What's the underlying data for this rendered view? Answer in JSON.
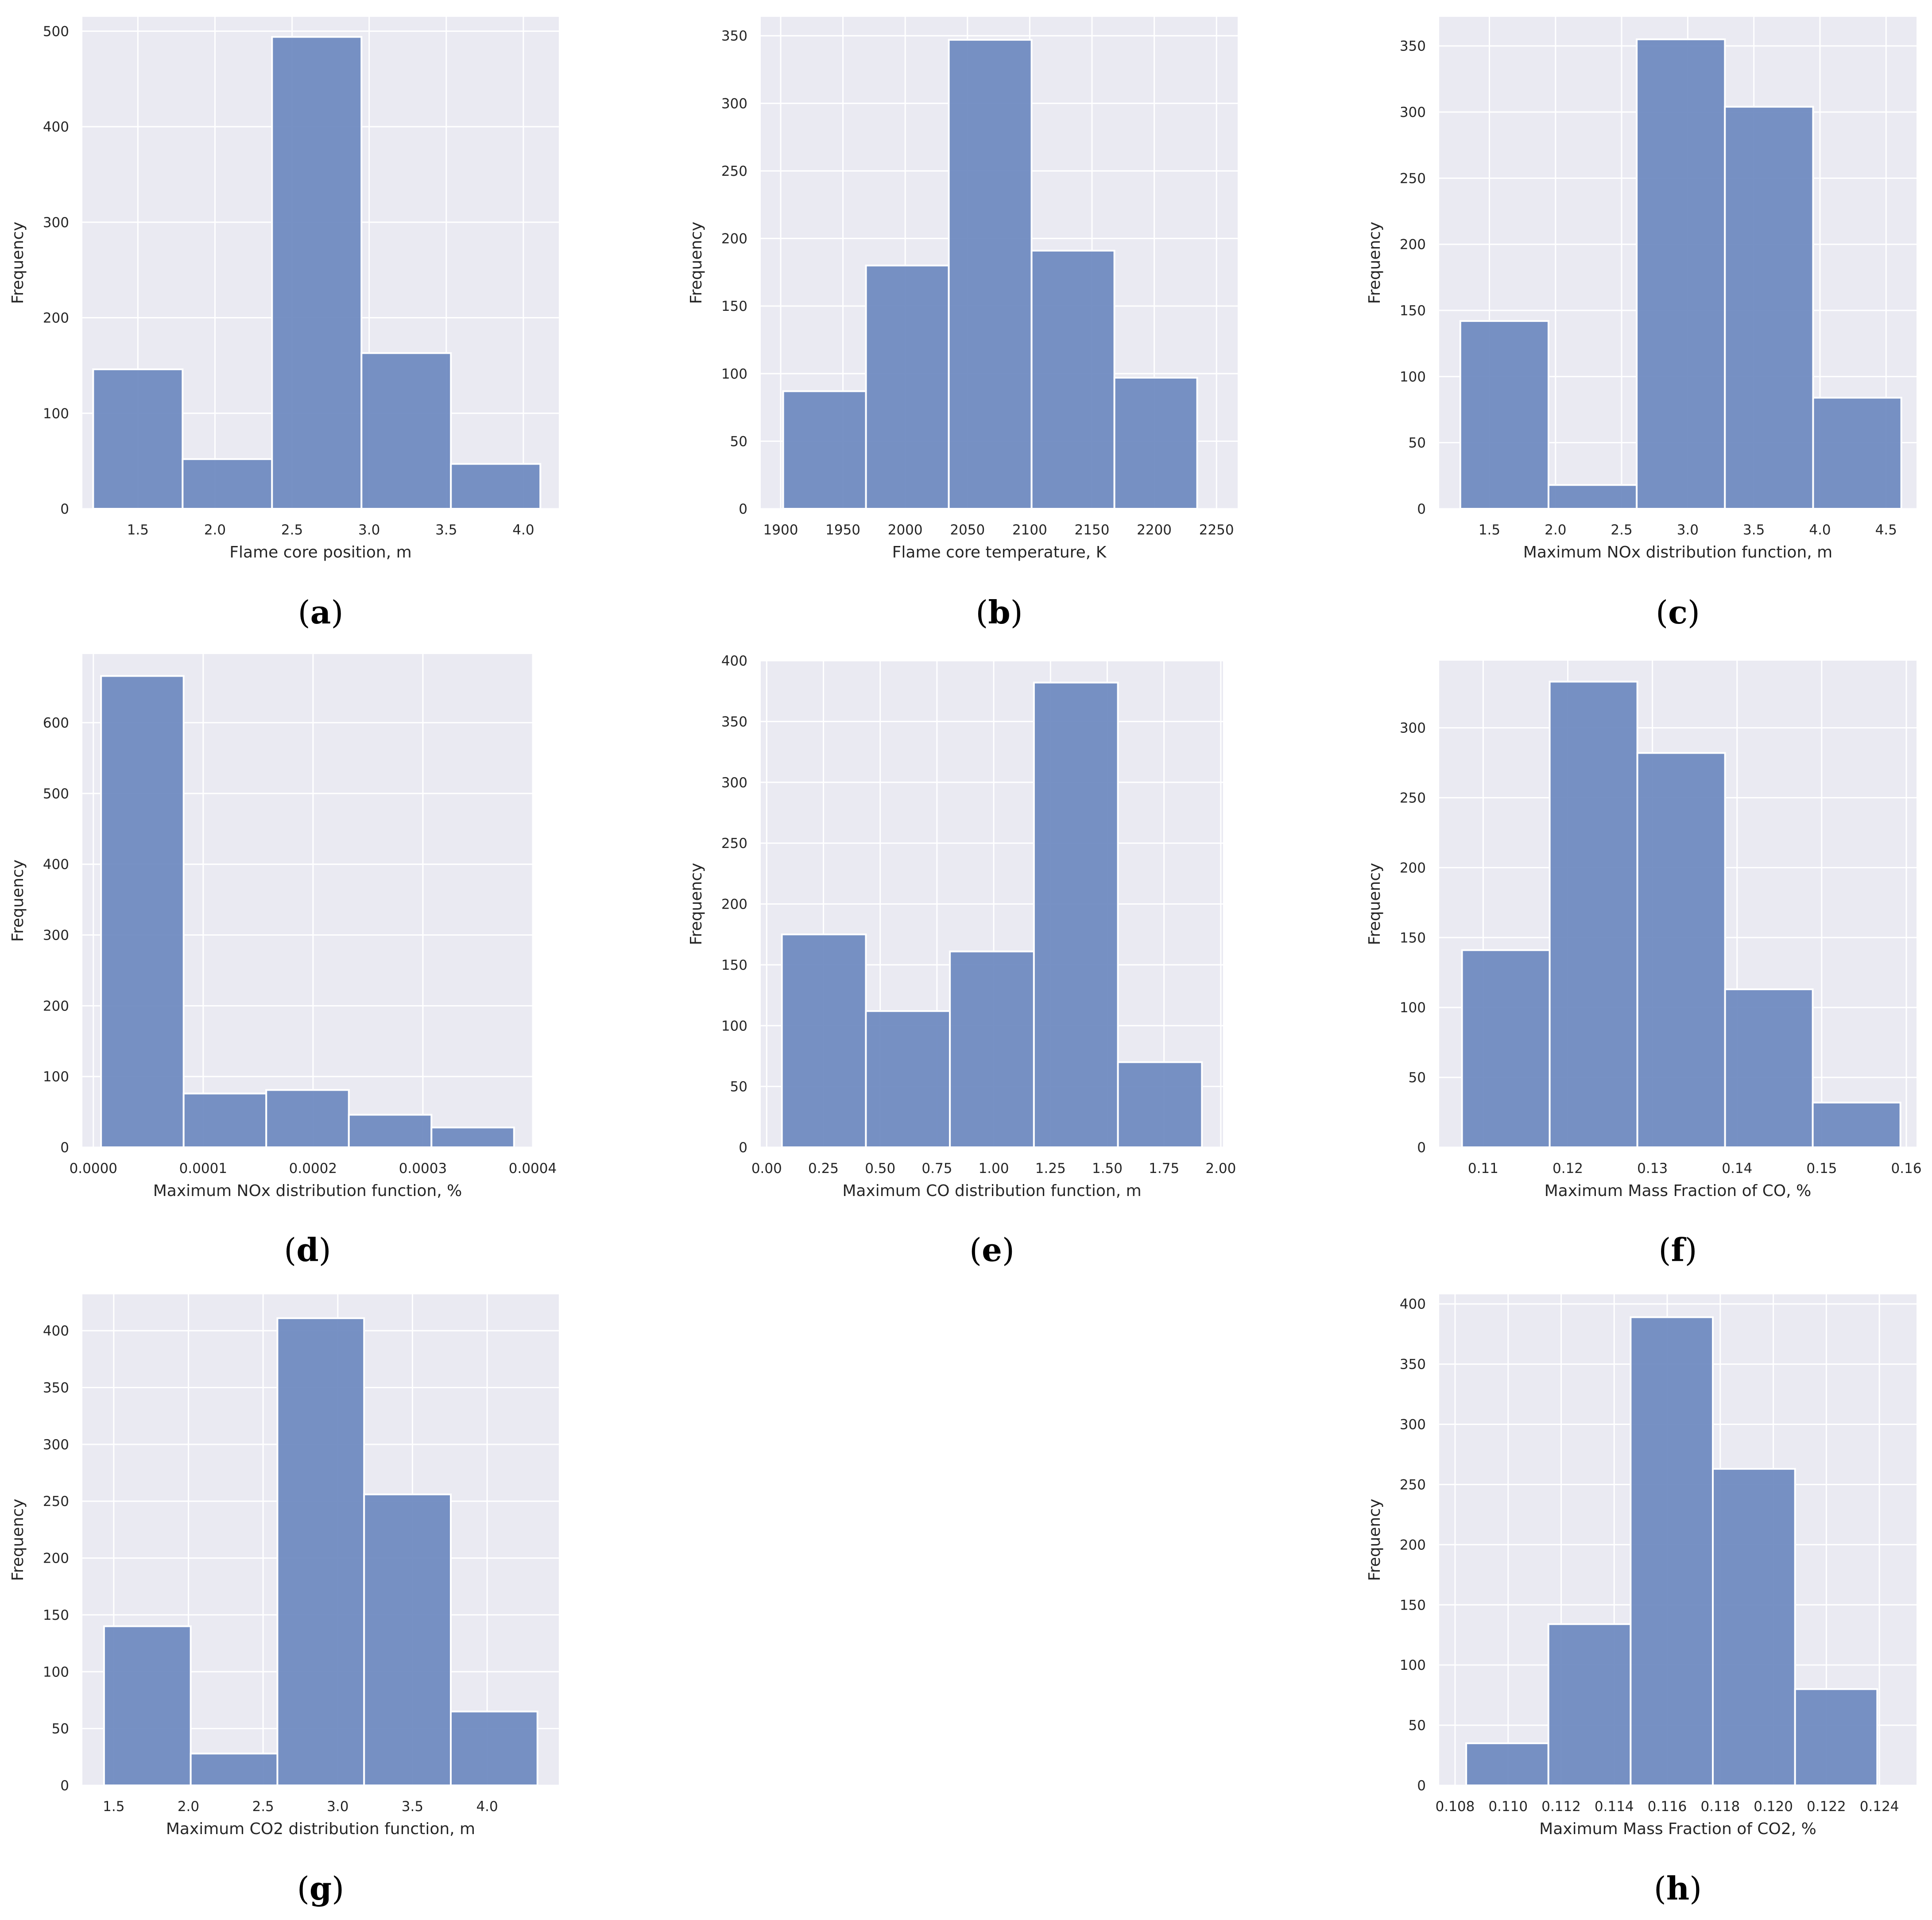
{
  "figure": {
    "background": "#ffffff",
    "plot_bg": "#eaeaf2",
    "grid_color": "#ffffff",
    "bar_color": "#6b88bf",
    "bar_edge": "#ffffff"
  },
  "chart_data": [
    {
      "id": "a",
      "type": "bar",
      "caption_letter": "a",
      "xlabel": "Flame core position, m",
      "ylabel": "Frequency",
      "xlim": [
        1.14,
        4.23
      ],
      "ylim": [
        0,
        515
      ],
      "bin_edges": [
        1.21,
        1.79,
        2.37,
        2.95,
        3.53,
        4.11
      ],
      "values": [
        146,
        52,
        494,
        163,
        47
      ],
      "xticks": [
        1.5,
        2.0,
        2.5,
        3.0,
        3.5,
        4.0
      ],
      "xtick_labels": [
        "1.5",
        "2.0",
        "2.5",
        "3.0",
        "3.5",
        "4.0"
      ],
      "yticks": [
        0,
        100,
        200,
        300,
        400,
        500
      ],
      "ytick_labels": [
        "0",
        "100",
        "200",
        "300",
        "400",
        "500"
      ]
    },
    {
      "id": "b",
      "type": "bar",
      "caption_letter": "b",
      "xlabel": "Flame core temperature, K",
      "ylabel": "Frequency",
      "xlim": [
        1884,
        2267
      ],
      "ylim": [
        0,
        364
      ],
      "bin_edges": [
        1902,
        1968.5,
        2035,
        2101.5,
        2168,
        2234.5
      ],
      "values": [
        87,
        180,
        347,
        191,
        97
      ],
      "xticks": [
        1900,
        1950,
        2000,
        2050,
        2100,
        2150,
        2200,
        2250
      ],
      "xtick_labels": [
        "1900",
        "1950",
        "2000",
        "2050",
        "2100",
        "2150",
        "2200",
        "2250"
      ],
      "yticks": [
        0,
        50,
        100,
        150,
        200,
        250,
        300,
        350
      ],
      "ytick_labels": [
        "0",
        "50",
        "100",
        "150",
        "200",
        "250",
        "300",
        "350"
      ]
    },
    {
      "id": "c",
      "type": "bar",
      "caption_letter": "c",
      "xlabel": "Maximum NOx distribution function, m",
      "ylabel": "Frequency",
      "xlim": [
        1.12,
        4.73
      ],
      "ylim": [
        0,
        372
      ],
      "bin_edges": [
        1.28,
        1.947,
        2.614,
        3.281,
        3.948,
        4.615
      ],
      "values": [
        142,
        18,
        355,
        304,
        84
      ],
      "xticks": [
        1.5,
        2.0,
        2.5,
        3.0,
        3.5,
        4.0,
        4.5
      ],
      "xtick_labels": [
        "1.5",
        "2.0",
        "2.5",
        "3.0",
        "3.5",
        "4.0",
        "4.5"
      ],
      "yticks": [
        0,
        50,
        100,
        150,
        200,
        250,
        300,
        350
      ],
      "ytick_labels": [
        "0",
        "50",
        "100",
        "150",
        "200",
        "250",
        "300",
        "350"
      ]
    },
    {
      "id": "d",
      "type": "bar",
      "caption_letter": "d",
      "xlabel": "Maximum NOx distribution function, %",
      "ylabel": "Frequency",
      "xlim": [
        -1e-05,
        0.0004
      ],
      "ylim": [
        0,
        697
      ],
      "bin_edges": [
        7e-06,
        8.22e-05,
        0.0001574,
        0.0002326,
        0.0003078,
        0.000383
      ],
      "values": [
        666,
        76,
        81,
        46,
        28
      ],
      "xticks": [
        0.0,
        0.0001,
        0.0002,
        0.0003,
        0.0004
      ],
      "xtick_labels": [
        "0.0000",
        "0.0001",
        "0.0002",
        "0.0003",
        "0.0004"
      ],
      "yticks": [
        0,
        100,
        200,
        300,
        400,
        500,
        600
      ],
      "ytick_labels": [
        "0",
        "100",
        "200",
        "300",
        "400",
        "500",
        "600"
      ]
    },
    {
      "id": "e",
      "type": "bar",
      "caption_letter": "e",
      "xlabel": "Maximum CO distribution function, m",
      "ylabel": "Frequency",
      "xlim": [
        -0.026,
        2.01
      ],
      "ylim": [
        0,
        400
      ],
      "bin_edges": [
        0.067,
        0.437,
        0.807,
        1.177,
        1.547,
        1.917
      ],
      "values": [
        175,
        112,
        161,
        382,
        70
      ],
      "xticks": [
        0.0,
        0.25,
        0.5,
        0.75,
        1.0,
        1.25,
        1.5,
        1.75,
        2.0
      ],
      "xtick_labels": [
        "0.00",
        "0.25",
        "0.50",
        "0.75",
        "1.00",
        "1.25",
        "1.50",
        "1.75",
        "2.00"
      ],
      "yticks": [
        0,
        50,
        100,
        150,
        200,
        250,
        300,
        350,
        400
      ],
      "ytick_labels": [
        "0",
        "50",
        "100",
        "150",
        "200",
        "250",
        "300",
        "350",
        "400"
      ]
    },
    {
      "id": "f",
      "type": "bar",
      "caption_letter": "f",
      "xlabel": "Maximum Mass Fraction of CO, %",
      "ylabel": "Frequency",
      "xlim": [
        0.1048,
        0.1612
      ],
      "ylim": [
        0,
        348
      ],
      "bin_edges": [
        0.1075,
        0.11786,
        0.12822,
        0.13858,
        0.14894,
        0.1593
      ],
      "values": [
        141,
        333,
        282,
        113,
        32
      ],
      "xticks": [
        0.11,
        0.12,
        0.13,
        0.14,
        0.15,
        0.16
      ],
      "xtick_labels": [
        "0.11",
        "0.12",
        "0.13",
        "0.14",
        "0.15",
        "0.16"
      ],
      "yticks": [
        0,
        50,
        100,
        150,
        200,
        250,
        300
      ],
      "ytick_labels": [
        "0",
        "50",
        "100",
        "150",
        "200",
        "250",
        "300"
      ]
    },
    {
      "id": "g",
      "type": "bar",
      "caption_letter": "g",
      "xlabel": "Maximum CO2 distribution function, m",
      "ylabel": "Frequency",
      "xlim": [
        1.29,
        4.48
      ],
      "ylim": [
        0,
        432
      ],
      "bin_edges": [
        1.435,
        2.0154,
        2.5958,
        3.1762,
        3.7566,
        4.337
      ],
      "values": [
        140,
        28,
        411,
        256,
        65
      ],
      "xticks": [
        1.5,
        2.0,
        2.5,
        3.0,
        3.5,
        4.0
      ],
      "xtick_labels": [
        "1.5",
        "2.0",
        "2.5",
        "3.0",
        "3.5",
        "4.0"
      ],
      "yticks": [
        0,
        50,
        100,
        150,
        200,
        250,
        300,
        350,
        400
      ],
      "ytick_labels": [
        "0",
        "50",
        "100",
        "150",
        "200",
        "250",
        "300",
        "350",
        "400"
      ]
    },
    {
      "id": "h",
      "type": "bar",
      "caption_letter": "h",
      "xlabel": "Maximum Mass Fraction of CO2, %",
      "ylabel": "Frequency",
      "xlim": [
        0.1074,
        0.1254
      ],
      "ylim": [
        0,
        408
      ],
      "bin_edges": [
        0.10842,
        0.11152,
        0.11462,
        0.11772,
        0.12082,
        0.12392
      ],
      "values": [
        35,
        134,
        389,
        263,
        80
      ],
      "xticks": [
        0.108,
        0.11,
        0.112,
        0.114,
        0.116,
        0.118,
        0.12,
        0.122,
        0.124
      ],
      "xtick_labels": [
        "0.108",
        "0.110",
        "0.112",
        "0.114",
        "0.116",
        "0.118",
        "0.120",
        "0.122",
        "0.124"
      ],
      "yticks": [
        0,
        50,
        100,
        150,
        200,
        250,
        300,
        350,
        400
      ],
      "ytick_labels": [
        "0",
        "50",
        "100",
        "150",
        "200",
        "250",
        "300",
        "350",
        "400"
      ]
    }
  ]
}
